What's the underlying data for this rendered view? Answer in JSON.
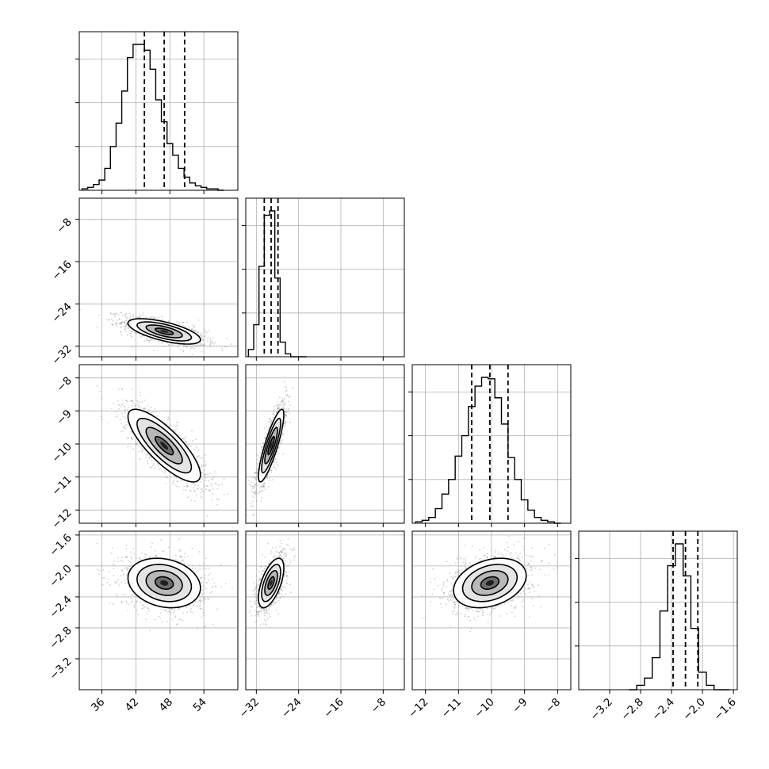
{
  "chart_data": {
    "type": "corner",
    "parameters": [
      {
        "range": [
          32,
          60
        ],
        "ticks": [
          36,
          42,
          48,
          54
        ],
        "tick_labels": [
          "36",
          "42",
          "48",
          "54"
        ],
        "hist": {
          "bins": [
            33,
            34,
            35,
            36,
            37,
            38,
            39,
            40,
            41,
            42,
            43,
            44,
            45,
            46,
            47,
            48,
            49,
            50,
            51,
            52,
            53,
            54,
            55,
            56,
            57
          ],
          "counts": [
            0.01,
            0.02,
            0.04,
            0.07,
            0.15,
            0.3,
            0.46,
            0.68,
            0.91,
            1.0,
            1.0,
            0.96,
            0.83,
            0.62,
            0.47,
            0.32,
            0.24,
            0.15,
            0.09,
            0.05,
            0.03,
            0.02,
            0.01,
            0.01,
            0.0
          ]
        },
        "quantiles": [
          43.5,
          47.0,
          50.6
        ]
      },
      {
        "range": [
          -34,
          -4
        ],
        "ticks": [
          -32,
          -24,
          -16,
          -8
        ],
        "tick_labels": [
          "−32",
          "−24",
          "−16",
          "−8"
        ],
        "hist": {
          "bins": [
            -33,
            -32,
            -31,
            -30,
            -29,
            -28,
            -27,
            -26,
            -25,
            -24,
            -23
          ],
          "counts": [
            0.05,
            0.22,
            0.62,
            0.97,
            1.0,
            0.54,
            0.1,
            0.02,
            0.0,
            0.0,
            0.0
          ]
        },
        "quantiles": [
          -30.5,
          -29.2,
          -27.9
        ]
      },
      {
        "range": [
          -12.4,
          -7.6
        ],
        "ticks": [
          -12,
          -11,
          -10,
          -9,
          -8
        ],
        "tick_labels": [
          "−12",
          "−11",
          "−10",
          "−9",
          "−8"
        ],
        "hist": {
          "bins": [
            -12.2,
            -12.0,
            -11.8,
            -11.6,
            -11.4,
            -11.2,
            -11.0,
            -10.8,
            -10.6,
            -10.4,
            -10.2,
            -10.0,
            -9.8,
            -9.6,
            -9.4,
            -9.2,
            -9.0,
            -8.8,
            -8.6,
            -8.4,
            -8.2,
            -8.0
          ],
          "counts": [
            0.01,
            0.02,
            0.04,
            0.1,
            0.2,
            0.3,
            0.46,
            0.6,
            0.8,
            0.94,
            1.0,
            0.99,
            0.86,
            0.68,
            0.45,
            0.3,
            0.16,
            0.09,
            0.04,
            0.02,
            0.01,
            0.0
          ]
        },
        "quantiles": [
          -10.6,
          -10.05,
          -9.5
        ]
      },
      {
        "range": [
          -3.6,
          -1.55
        ],
        "ticks": [
          -3.2,
          -2.8,
          -2.4,
          -2.0,
          -1.6
        ],
        "tick_labels": [
          "−3.2",
          "−2.8",
          "−2.4",
          "−2.0",
          "−1.6"
        ],
        "hist": {
          "bins": [
            -2.9,
            -2.8,
            -2.7,
            -2.6,
            -2.5,
            -2.4,
            -2.3,
            -2.2,
            -2.1,
            -2.0,
            -1.9,
            -1.8,
            -1.7
          ],
          "counts": [
            0.0,
            0.03,
            0.08,
            0.22,
            0.54,
            0.85,
            1.0,
            0.78,
            0.42,
            0.12,
            0.03,
            0.0,
            0.0
          ]
        },
        "quantiles": [
          -2.38,
          -2.22,
          -2.06
        ]
      }
    ],
    "pairs": [
      {
        "row": 1,
        "col": 0,
        "mean": [
          47.0,
          -29.2
        ],
        "sd": [
          3.2,
          1.2
        ],
        "corr": -0.65
      },
      {
        "row": 2,
        "col": 0,
        "mean": [
          47.0,
          -10.05
        ],
        "sd": [
          3.2,
          0.55
        ],
        "corr": -0.8
      },
      {
        "row": 2,
        "col": 1,
        "mean": [
          -29.2,
          -10.05
        ],
        "sd": [
          1.2,
          0.55
        ],
        "corr": 0.85
      },
      {
        "row": 3,
        "col": 0,
        "mean": [
          47.0,
          -2.22
        ],
        "sd": [
          3.2,
          0.16
        ],
        "corr": -0.2
      },
      {
        "row": 3,
        "col": 1,
        "mean": [
          -29.2,
          -2.22
        ],
        "sd": [
          1.2,
          0.16
        ],
        "corr": 0.6
      },
      {
        "row": 3,
        "col": 2,
        "mean": [
          -10.05,
          -2.22
        ],
        "sd": [
          0.55,
          0.16
        ],
        "corr": 0.3
      }
    ],
    "contour_levels_sigma": [
      0.5,
      1.0,
      1.5,
      2.0
    ],
    "grid": true
  }
}
